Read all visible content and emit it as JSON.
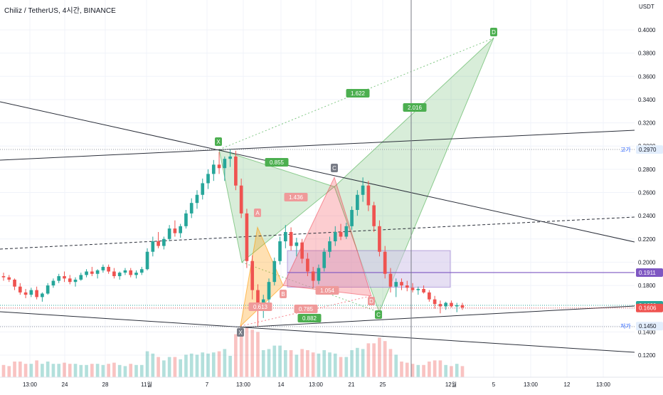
{
  "title": "Chiliz / TetherUS, 4시간, BINANCE",
  "colors": {
    "bg": "#ffffff",
    "up": "#26a69a",
    "down": "#ef5350",
    "axis_text": "#131722",
    "grid": "#f0f3fa",
    "trend": "#2a2e39",
    "pattern_green": "#4caf50",
    "pattern_red": "#f23645",
    "pattern_orange": "#ff9800",
    "box_fill": "#d1c4e9",
    "box_line": "#7e57c2",
    "tag_green": "#4caf50",
    "tag_red": "#ef9a9a",
    "tag_dark": "#787b86"
  },
  "chart_data": {
    "type": "candlestick",
    "symbol": "Chiliz / TetherUS",
    "interval": "4시간",
    "exchange": "BINANCE",
    "y_unit": "USDT",
    "ylim": [
      0.11,
      0.42
    ],
    "y_ticks": [
      0.12,
      0.14,
      0.145,
      0.16,
      0.18,
      0.2,
      0.22,
      0.24,
      0.26,
      0.28,
      0.3,
      0.32,
      0.34,
      0.36,
      0.38,
      0.4
    ],
    "y_tick_labels": [
      "0.1200",
      "0.1400",
      "0.1450",
      "0.1600",
      "0.1800",
      "0.2000",
      "0.2200",
      "0.2400",
      "0.2600",
      "0.2800",
      "0.3000",
      "0.3200",
      "0.3400",
      "0.3600",
      "0.3800",
      "0.4000"
    ],
    "x_ticks": [
      {
        "label": "13:00",
        "t": 0
      },
      {
        "label": "24",
        "t": 1
      },
      {
        "label": "28",
        "t": 2
      },
      {
        "label": "11월",
        "t": 3
      },
      {
        "label": "7",
        "t": 4
      },
      {
        "label": "13:00",
        "t": 5
      },
      {
        "label": "14",
        "t": 6
      },
      {
        "label": "13:00",
        "t": 7
      },
      {
        "label": "21",
        "t": 8
      },
      {
        "label": "25",
        "t": 9
      },
      {
        "label": "12월",
        "t": 10
      },
      {
        "label": "5",
        "t": 11
      },
      {
        "label": "13:00",
        "t": 12
      },
      {
        "label": "12",
        "t": 13
      },
      {
        "label": "13:00",
        "t": 14
      }
    ],
    "price_labels": [
      {
        "name": "high",
        "prefix": "고가",
        "value": 0.297,
        "text": "0.2970"
      },
      {
        "name": "box-level",
        "prefix": "",
        "value": 0.1911,
        "text": "0.1911"
      },
      {
        "name": "last-price",
        "prefix": "",
        "value": 0.1629,
        "text": "0.1629"
      },
      {
        "name": "current",
        "prefix": "",
        "value": 0.1606,
        "text": "0.1606"
      },
      {
        "name": "low",
        "prefix": "저가",
        "value": 0.145,
        "text": "0.1450"
      }
    ],
    "harmonic_green": {
      "points": {
        "X": 0.297,
        "A": 0.2,
        "B": 0.265,
        "C": 0.157,
        "D": 0.393
      },
      "point_labels": [
        "X",
        "A",
        "B",
        "C",
        "D"
      ],
      "ratios": [
        "0.855",
        "1.622",
        "2.016",
        "0.882"
      ]
    },
    "harmonic_red": {
      "points": {
        "X": 0.145,
        "A": 0.23,
        "B": 0.18,
        "C": 0.273,
        "D": 0.171
      },
      "point_labels": [
        "X",
        "A",
        "B",
        "C",
        "D"
      ],
      "ratios": [
        "0.613",
        "1.436",
        "1.054",
        "0.785"
      ]
    },
    "rectangle": {
      "top": 0.21,
      "bottom": 0.1785,
      "mid": 0.1911
    },
    "series": [
      {
        "kind": "ohlc",
        "values": [
          [
            0.188,
            0.191,
            0.184,
            0.187
          ],
          [
            0.187,
            0.189,
            0.183,
            0.185
          ],
          [
            0.185,
            0.186,
            0.176,
            0.179
          ],
          [
            0.179,
            0.182,
            0.172,
            0.174
          ],
          [
            0.174,
            0.177,
            0.169,
            0.172
          ],
          [
            0.172,
            0.178,
            0.17,
            0.176
          ],
          [
            0.176,
            0.179,
            0.168,
            0.17
          ],
          [
            0.17,
            0.174,
            0.166,
            0.173
          ],
          [
            0.173,
            0.182,
            0.172,
            0.18
          ],
          [
            0.18,
            0.186,
            0.178,
            0.184
          ],
          [
            0.184,
            0.19,
            0.182,
            0.188
          ],
          [
            0.188,
            0.192,
            0.183,
            0.186
          ],
          [
            0.186,
            0.189,
            0.181,
            0.183
          ],
          [
            0.183,
            0.187,
            0.179,
            0.185
          ],
          [
            0.185,
            0.191,
            0.184,
            0.189
          ],
          [
            0.189,
            0.194,
            0.187,
            0.192
          ],
          [
            0.192,
            0.196,
            0.188,
            0.19
          ],
          [
            0.19,
            0.194,
            0.186,
            0.193
          ],
          [
            0.193,
            0.198,
            0.191,
            0.196
          ],
          [
            0.196,
            0.198,
            0.19,
            0.192
          ],
          [
            0.192,
            0.195,
            0.186,
            0.188
          ],
          [
            0.188,
            0.192,
            0.185,
            0.191
          ],
          [
            0.191,
            0.195,
            0.189,
            0.193
          ],
          [
            0.193,
            0.195,
            0.187,
            0.189
          ],
          [
            0.189,
            0.193,
            0.186,
            0.191
          ],
          [
            0.191,
            0.196,
            0.189,
            0.194
          ],
          [
            0.194,
            0.212,
            0.193,
            0.209
          ],
          [
            0.209,
            0.222,
            0.205,
            0.218
          ],
          [
            0.218,
            0.226,
            0.212,
            0.214
          ],
          [
            0.214,
            0.222,
            0.211,
            0.22
          ],
          [
            0.22,
            0.232,
            0.218,
            0.229
          ],
          [
            0.229,
            0.236,
            0.222,
            0.225
          ],
          [
            0.225,
            0.233,
            0.221,
            0.231
          ],
          [
            0.231,
            0.245,
            0.229,
            0.242
          ],
          [
            0.242,
            0.255,
            0.238,
            0.251
          ],
          [
            0.251,
            0.262,
            0.246,
            0.258
          ],
          [
            0.258,
            0.272,
            0.254,
            0.268
          ],
          [
            0.268,
            0.28,
            0.263,
            0.276
          ],
          [
            0.276,
            0.288,
            0.27,
            0.284
          ],
          [
            0.284,
            0.295,
            0.276,
            0.281
          ],
          [
            0.281,
            0.291,
            0.27,
            0.289
          ],
          [
            0.289,
            0.297,
            0.282,
            0.291
          ],
          [
            0.291,
            0.296,
            0.262,
            0.266
          ],
          [
            0.266,
            0.272,
            0.238,
            0.242
          ],
          [
            0.242,
            0.246,
            0.195,
            0.201
          ],
          [
            0.201,
            0.206,
            0.168,
            0.176
          ],
          [
            0.176,
            0.181,
            0.145,
            0.159
          ],
          [
            0.159,
            0.172,
            0.152,
            0.168
          ],
          [
            0.168,
            0.186,
            0.165,
            0.183
          ],
          [
            0.183,
            0.204,
            0.18,
            0.201
          ],
          [
            0.201,
            0.222,
            0.198,
            0.218
          ],
          [
            0.218,
            0.232,
            0.212,
            0.226
          ],
          [
            0.226,
            0.23,
            0.21,
            0.214
          ],
          [
            0.214,
            0.221,
            0.205,
            0.217
          ],
          [
            0.217,
            0.22,
            0.199,
            0.203
          ],
          [
            0.203,
            0.208,
            0.188,
            0.192
          ],
          [
            0.192,
            0.196,
            0.178,
            0.184
          ],
          [
            0.184,
            0.198,
            0.181,
            0.195
          ],
          [
            0.195,
            0.212,
            0.192,
            0.209
          ],
          [
            0.209,
            0.222,
            0.204,
            0.218
          ],
          [
            0.218,
            0.231,
            0.214,
            0.226
          ],
          [
            0.226,
            0.233,
            0.219,
            0.222
          ],
          [
            0.222,
            0.234,
            0.22,
            0.231
          ],
          [
            0.231,
            0.248,
            0.228,
            0.245
          ],
          [
            0.245,
            0.262,
            0.24,
            0.258
          ],
          [
            0.258,
            0.273,
            0.252,
            0.266
          ],
          [
            0.266,
            0.27,
            0.244,
            0.249
          ],
          [
            0.249,
            0.252,
            0.226,
            0.231
          ],
          [
            0.231,
            0.236,
            0.205,
            0.209
          ],
          [
            0.209,
            0.214,
            0.186,
            0.19
          ],
          [
            0.19,
            0.195,
            0.174,
            0.179
          ],
          [
            0.179,
            0.186,
            0.17,
            0.183
          ],
          [
            0.183,
            0.186,
            0.176,
            0.18
          ],
          [
            0.18,
            0.184,
            0.175,
            0.178
          ],
          [
            0.178,
            0.182,
            0.174,
            0.176
          ],
          [
            0.176,
            0.179,
            0.172,
            0.177
          ],
          [
            0.177,
            0.18,
            0.173,
            0.174
          ],
          [
            0.174,
            0.176,
            0.166,
            0.168
          ],
          [
            0.168,
            0.171,
            0.16,
            0.164
          ],
          [
            0.164,
            0.167,
            0.156,
            0.162
          ],
          [
            0.162,
            0.166,
            0.159,
            0.165
          ],
          [
            0.165,
            0.167,
            0.161,
            0.162
          ],
          [
            0.162,
            0.165,
            0.157,
            0.163
          ],
          [
            0.163,
            0.165,
            0.159,
            0.161
          ]
        ]
      }
    ]
  }
}
